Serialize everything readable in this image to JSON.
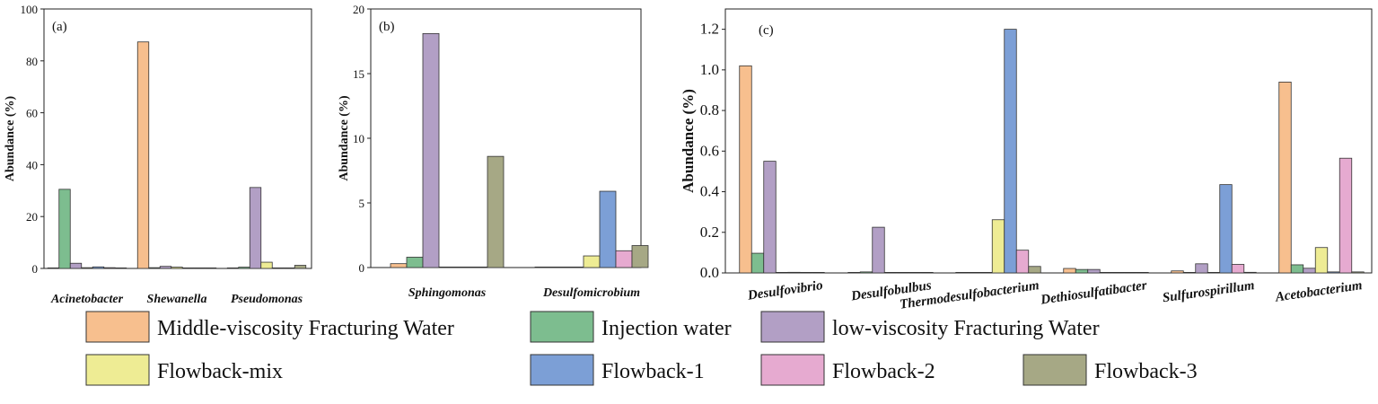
{
  "colors": {
    "Middle-viscosity Fracturing Water": "#f7bf8e",
    "Injection water": "#7dbd8f",
    "low-viscosity Fracturing Water": "#b29fc5",
    "Flowback-mix": "#eeec94",
    "Flowback-1": "#7c9fd6",
    "Flowback-2": "#e6aad0",
    "Flowback-3": "#a6a885"
  },
  "legend": {
    "items": [
      "Middle-viscosity Fracturing Water",
      "Injection water",
      "low-viscosity Fracturing Water",
      "Flowback-mix",
      "Flowback-1",
      "Flowback-2",
      "Flowback-3"
    ]
  },
  "chart_data": [
    {
      "id": "a",
      "type": "bar",
      "panel_label": "(a)",
      "ylabel": "Abundance (%)",
      "ylim": [
        0,
        100
      ],
      "yticks": [
        0,
        20,
        40,
        60,
        80,
        100
      ],
      "ytick_labels": [
        "0",
        "20",
        "40",
        "60",
        "80",
        "100"
      ],
      "categories": [
        "Acinetobacter",
        "Shewanella",
        "Pseudomonas"
      ],
      "series": [
        {
          "name": "Middle-viscosity Fracturing Water",
          "values": [
            0.2,
            87.3,
            0.2
          ]
        },
        {
          "name": "Injection water",
          "values": [
            30.5,
            0.3,
            0.5
          ]
        },
        {
          "name": "low-viscosity Fracturing Water",
          "values": [
            2.0,
            0.8,
            31.2
          ]
        },
        {
          "name": "Flowback-mix",
          "values": [
            0.3,
            0.5,
            2.4
          ]
        },
        {
          "name": "Flowback-1",
          "values": [
            0.6,
            0.2,
            0.2
          ]
        },
        {
          "name": "Flowback-2",
          "values": [
            0.3,
            0.1,
            0.2
          ]
        },
        {
          "name": "Flowback-3",
          "values": [
            0.2,
            0.1,
            1.2
          ]
        }
      ]
    },
    {
      "id": "b",
      "type": "bar",
      "panel_label": "(b)",
      "ylabel": "Abundance (%)",
      "ylim": [
        0,
        20
      ],
      "yticks": [
        0,
        5,
        10,
        15,
        20
      ],
      "ytick_labels": [
        "0",
        "5",
        "10",
        "15",
        "20"
      ],
      "categories": [
        "Sphingomonas",
        "Desulfomicrobium"
      ],
      "series": [
        {
          "name": "Middle-viscosity Fracturing Water",
          "values": [
            0.3,
            0.0
          ]
        },
        {
          "name": "Injection water",
          "values": [
            0.8,
            0.0
          ]
        },
        {
          "name": "low-viscosity Fracturing Water",
          "values": [
            18.1,
            0.0
          ]
        },
        {
          "name": "Flowback-mix",
          "values": [
            0.0,
            0.9
          ]
        },
        {
          "name": "Flowback-1",
          "values": [
            0.0,
            5.9
          ]
        },
        {
          "name": "Flowback-2",
          "values": [
            0.0,
            1.3
          ]
        },
        {
          "name": "Flowback-3",
          "values": [
            8.6,
            1.7
          ]
        }
      ]
    },
    {
      "id": "c",
      "type": "bar",
      "panel_label": "(c)",
      "ylabel": "Abundance (%)",
      "ylim": [
        0,
        1.3
      ],
      "yticks": [
        0,
        0.2,
        0.4,
        0.6,
        0.8,
        1.0,
        1.2
      ],
      "ytick_labels": [
        "0.0",
        "0.2",
        "0.4",
        "0.6",
        "0.8",
        "1.0",
        "1.2"
      ],
      "categories": [
        "Desulfovibrio",
        "Desulfobulbus",
        "Thermodesulfobacterium",
        "Dethiosulfatibacter",
        "Sulfurospirillum",
        "Acetobacterium"
      ],
      "series": [
        {
          "name": "Middle-viscosity Fracturing Water",
          "values": [
            1.02,
            0.0,
            0.0,
            0.022,
            0.01,
            0.94
          ]
        },
        {
          "name": "Injection water",
          "values": [
            0.097,
            0.005,
            0.0,
            0.017,
            0.0,
            0.04
          ]
        },
        {
          "name": "low-viscosity Fracturing Water",
          "values": [
            0.55,
            0.225,
            0.0,
            0.017,
            0.045,
            0.023
          ]
        },
        {
          "name": "Flowback-mix",
          "values": [
            0.0,
            0.0,
            0.262,
            0.0,
            0.0,
            0.125
          ]
        },
        {
          "name": "Flowback-1",
          "values": [
            0.003,
            0.0,
            1.2,
            0.0,
            0.435,
            0.005
          ]
        },
        {
          "name": "Flowback-2",
          "values": [
            0.0,
            0.0,
            0.112,
            0.0,
            0.042,
            0.565
          ]
        },
        {
          "name": "Flowback-3",
          "values": [
            0.0,
            0.0,
            0.032,
            0.0,
            0.003,
            0.005
          ]
        }
      ]
    }
  ]
}
